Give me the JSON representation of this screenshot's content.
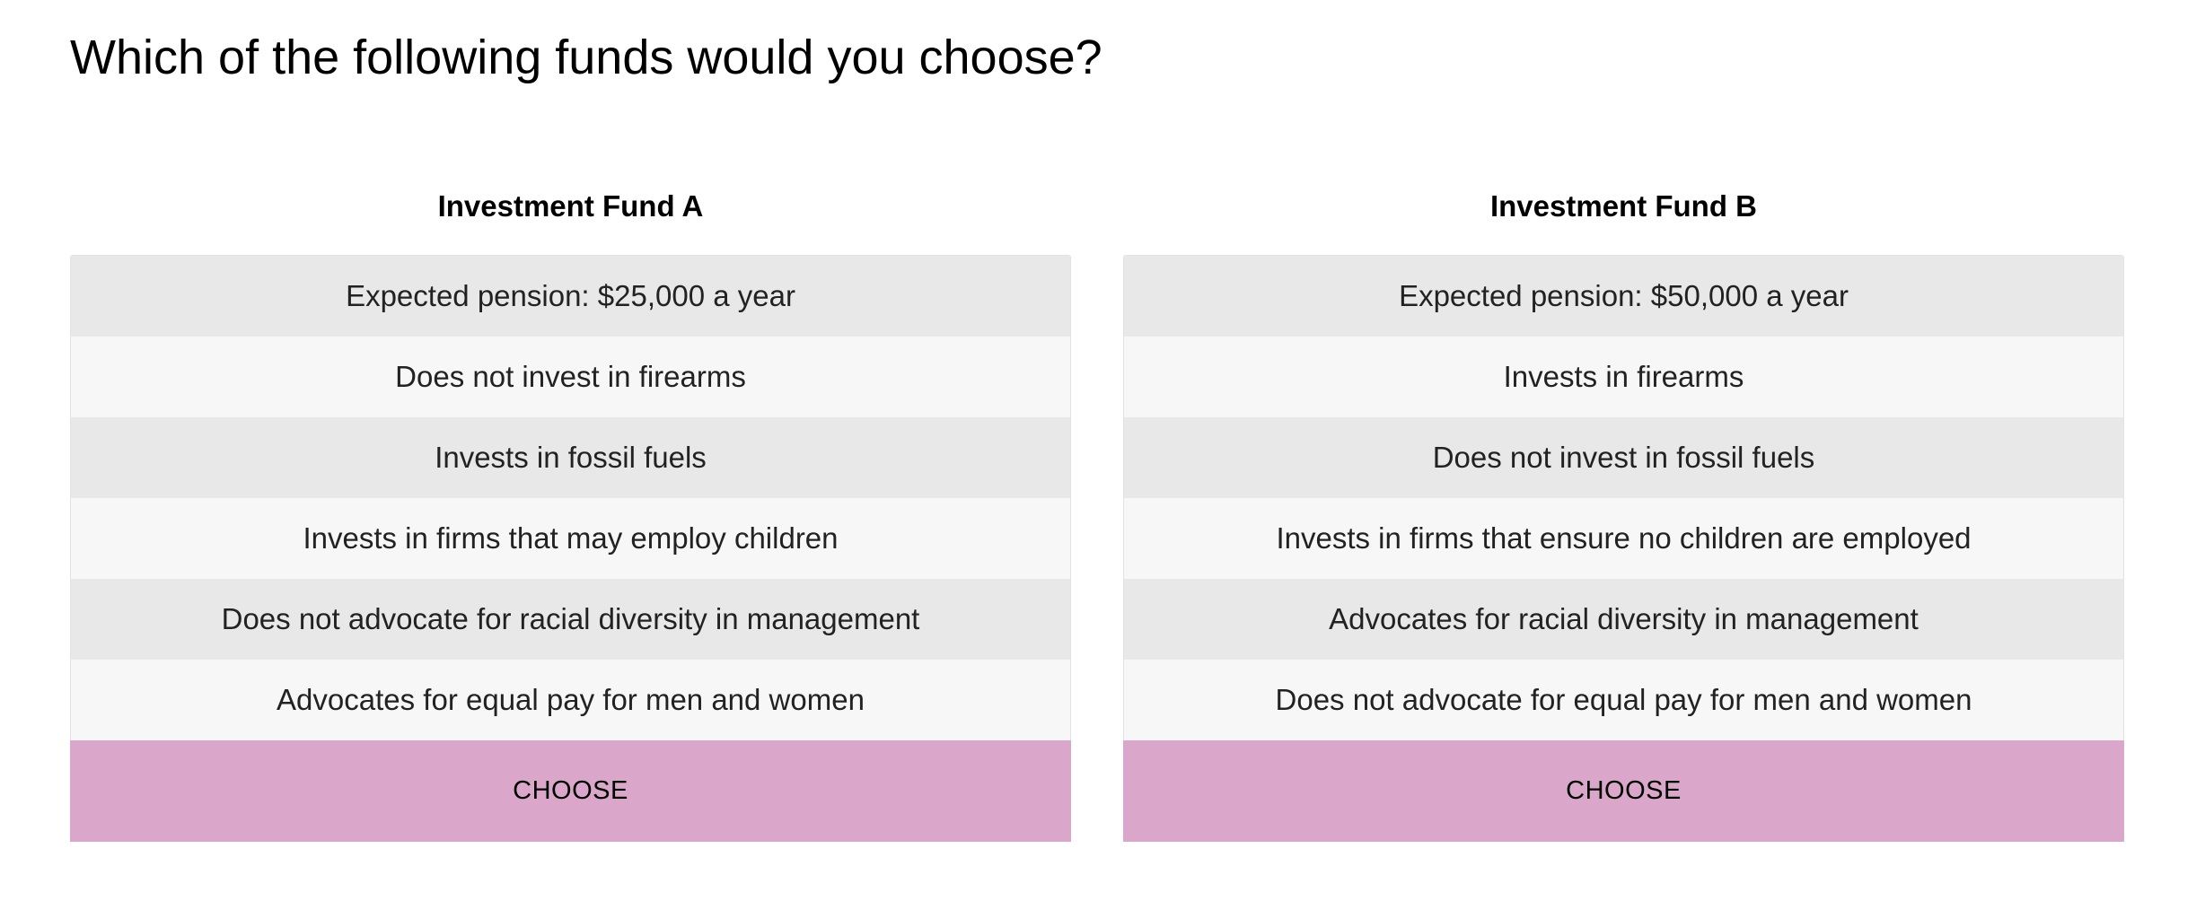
{
  "question": "Which of the following funds would you choose?",
  "funds": [
    {
      "title": "Investment Fund A",
      "attributes": [
        "Expected pension: $25,000 a year",
        "Does not invest in firearms",
        "Invests in fossil fuels",
        "Invests in firms that may employ children",
        "Does not advocate for racial diversity in management",
        "Advocates for equal pay for men and women"
      ],
      "button_label": "CHOOSE"
    },
    {
      "title": "Investment Fund B",
      "attributes": [
        "Expected pension: $50,000 a year",
        "Invests in firearms",
        "Does not invest in fossil fuels",
        "Invests in firms that ensure no children are employed",
        "Advocates for racial diversity in management",
        "Does not advocate for equal pay for men and women"
      ],
      "button_label": "CHOOSE"
    }
  ],
  "colors": {
    "button": "#daa7cb",
    "row_dark": "#e8e8e8",
    "row_light": "#f7f7f7"
  }
}
